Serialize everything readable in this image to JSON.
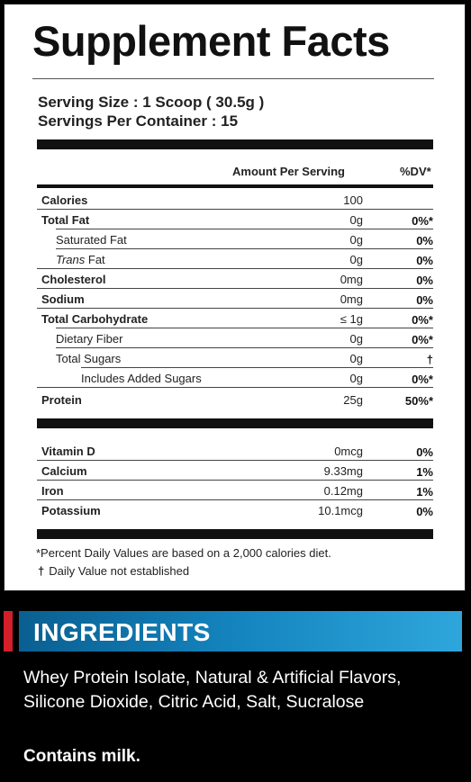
{
  "label": {
    "title": "Supplement Facts",
    "serving_size": "Serving Size : 1 Scoop ( 30.5g )",
    "servings_per_container": "Servings Per Container : 15",
    "header_amount": "Amount Per Serving",
    "header_dv": "%DV*",
    "rows": [
      {
        "name": "Calories",
        "amount": "100",
        "dv": ""
      },
      {
        "name": "Total Fat",
        "amount": "0g",
        "dv": "0%*"
      },
      {
        "name": "Saturated Fat",
        "amount": "0g",
        "dv": "0%"
      },
      {
        "name_italic": "Trans",
        "name_rest": " Fat",
        "amount": "0g",
        "dv": "0%"
      },
      {
        "name": "Cholesterol",
        "amount": "0mg",
        "dv": "0%"
      },
      {
        "name": "Sodium",
        "amount": "0mg",
        "dv": "0%"
      },
      {
        "name": "Total Carbohydrate",
        "amount": "≤ 1g",
        "dv": "0%*"
      },
      {
        "name": "Dietary Fiber",
        "amount": "0g",
        "dv": "0%*"
      },
      {
        "name": "Total Sugars",
        "amount": "0g",
        "dv": "†"
      },
      {
        "name": "Includes Added Sugars",
        "amount": "0g",
        "dv": "0%*"
      },
      {
        "name": "Protein",
        "amount": "25g",
        "dv": "50%*"
      }
    ],
    "minerals": [
      {
        "name": "Vitamin D",
        "amount": "0mcg",
        "dv": "0%"
      },
      {
        "name": "Calcium",
        "amount": "9.33mg",
        "dv": "1%"
      },
      {
        "name": "Iron",
        "amount": "0.12mg",
        "dv": "1%"
      },
      {
        "name": "Potassium",
        "amount": "10.1mcg",
        "dv": "0%"
      }
    ],
    "footnote_dv": "*Percent Daily Values are based on a 2,000 calories diet.",
    "footnote_dagger_symbol": "†",
    "footnote_dagger_text": "Daily Value not established"
  },
  "ingredients": {
    "heading": "INGREDIENTS",
    "text": "Whey Protein Isolate, Natural & Artificial Flavors, Silicone Dioxide, Citric Acid, Salt, Sucralose",
    "allergen": "Contains milk."
  },
  "colors": {
    "background": "#000000",
    "panel": "#ffffff",
    "accent_red": "#d21f2a",
    "accent_blue": "#1585bf"
  }
}
